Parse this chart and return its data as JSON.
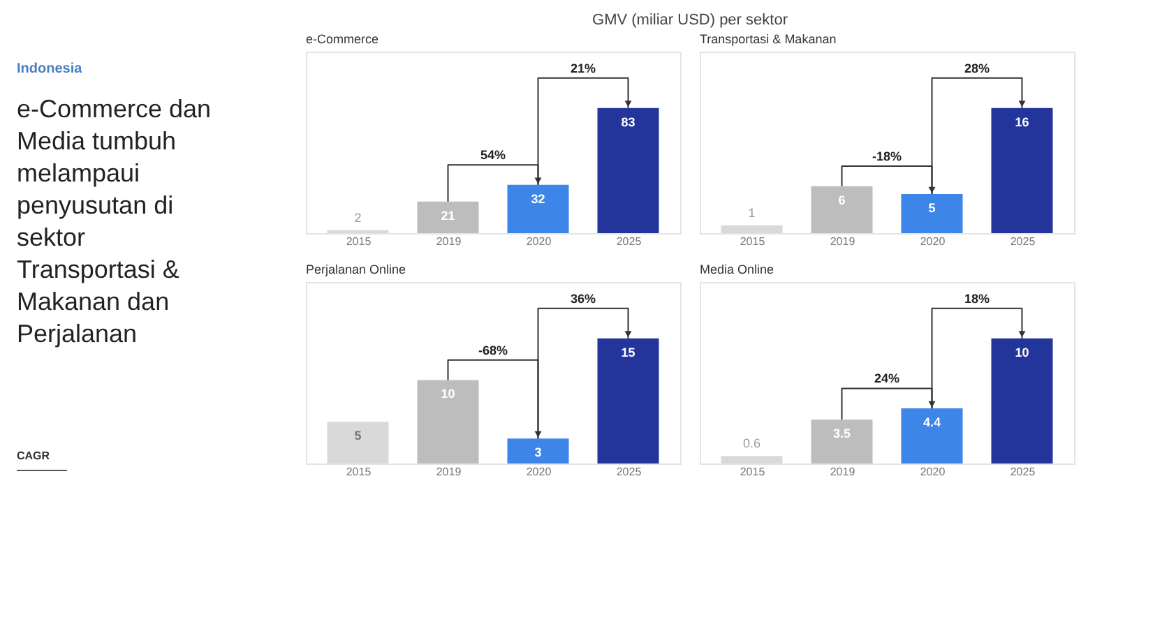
{
  "chart_data": [
    {
      "type": "other",
      "subtitle": "Indonesia",
      "title": "e-Commerce dan Media tumbuh melampaui penyusutan di sektor Transportasi & Makanan dan Perjalanan",
      "annotations": [
        "CAGR",
        "GMV (miliar USD) per sektor"
      ]
    },
    {
      "type": "bar",
      "title": "e-Commerce",
      "categories": [
        "2015",
        "2019",
        "2020",
        "2025"
      ],
      "values": [
        2,
        21,
        32,
        83
      ],
      "colors": [
        "#d9d9d9",
        "#bdbdbd",
        "#3d85e8",
        "#23349b"
      ],
      "data_labels": true,
      "annotations": [
        "54%",
        "21%"
      ]
    },
    {
      "type": "bar",
      "title": "Transportasi & Makanan",
      "categories": [
        "2015",
        "2019",
        "2020",
        "2025"
      ],
      "values": [
        1,
        6,
        5,
        16
      ],
      "colors": [
        "#d9d9d9",
        "#bdbdbd",
        "#3d85e8",
        "#23349b"
      ],
      "data_labels": true,
      "annotations": [
        "-18%",
        "28%"
      ]
    },
    {
      "type": "bar",
      "title": "Perjalanan Online",
      "categories": [
        "2015",
        "2019",
        "2020",
        "2025"
      ],
      "values": [
        5,
        10,
        3,
        15
      ],
      "colors": [
        "#d9d9d9",
        "#bdbdbd",
        "#3d85e8",
        "#23349b"
      ],
      "data_labels": true,
      "annotations": [
        "-68%",
        "36%"
      ]
    },
    {
      "type": "bar",
      "title": "Media Online",
      "categories": [
        "2015",
        "2019",
        "2020",
        "2025"
      ],
      "values": [
        0.6,
        3.5,
        4.4,
        10
      ],
      "colors": [
        "#d9d9d9",
        "#bdbdbd",
        "#3d85e8",
        "#23349b"
      ],
      "data_labels": true,
      "annotations": [
        "24%",
        "18%"
      ]
    }
  ]
}
